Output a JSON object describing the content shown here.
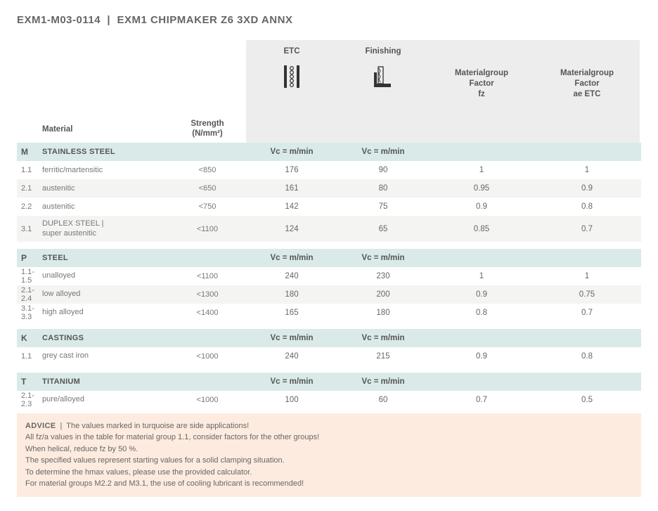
{
  "title_left": "EXM1-M03-0114",
  "title_right": "EXM1 CHIPMAKER Z6 3XD ANNX",
  "columns": {
    "material": "Material",
    "strength": "Strength\n(N/mm²)",
    "etc": "ETC",
    "finishing": "Finishing",
    "factor_fz": "Materialgroup\nFactor\nfz",
    "factor_ae": "Materialgroup\nFactor\nae ETC"
  },
  "vc_label": "Vc = m/min",
  "groups": [
    {
      "code": "M",
      "name": "STAINLESS STEEL",
      "stripe": "#f2c200",
      "rows": [
        {
          "id": "1.1",
          "mat": "ferritic/martensitic",
          "strength": "<850",
          "etc": "176",
          "fin": "90",
          "fz": "1",
          "ae": "1"
        },
        {
          "id": "2.1",
          "mat": "austenitic",
          "strength": "<650",
          "etc": "161",
          "fin": "80",
          "fz": "0.95",
          "ae": "0.9"
        },
        {
          "id": "2.2",
          "mat": "austenitic",
          "strength": "<750",
          "etc": "142",
          "fin": "75",
          "fz": "0.9",
          "ae": "0.8"
        },
        {
          "id": "3.1",
          "mat": "DUPLEX STEEL |\nsuper austenitic",
          "strength": "<1100",
          "etc": "124",
          "fin": "65",
          "fz": "0.85",
          "ae": "0.7"
        }
      ]
    },
    {
      "code": "P",
      "name": "STEEL",
      "stripe": "#2b4aa0",
      "rows": [
        {
          "id": "1.1-1.5",
          "mat": "unalloyed",
          "strength": "<1100",
          "etc": "240",
          "fin": "230",
          "fz": "1",
          "ae": "1"
        },
        {
          "id": "2.1-2.4",
          "mat": "low alloyed",
          "strength": "<1300",
          "etc": "180",
          "fin": "200",
          "fz": "0.9",
          "ae": "0.75"
        },
        {
          "id": "3.1-3.3",
          "mat": "high alloyed",
          "strength": "<1400",
          "etc": "165",
          "fin": "180",
          "fz": "0.8",
          "ae": "0.7"
        }
      ]
    },
    {
      "code": "K",
      "name": "CASTINGS",
      "stripe": "#d32e2e",
      "rows": [
        {
          "id": "1.1",
          "mat": "grey cast iron",
          "strength": "<1000",
          "etc": "240",
          "fin": "215",
          "fz": "0.9",
          "ae": "0.8"
        }
      ]
    },
    {
      "code": "T",
      "name": "TITANIUM",
      "stripe": "#f08a2a",
      "rows": [
        {
          "id": "2.1-2.3",
          "mat": "pure/alloyed",
          "strength": "<1000",
          "etc": "100",
          "fin": "60",
          "fz": "0.7",
          "ae": "0.5"
        }
      ]
    }
  ],
  "advice": {
    "label": "ADVICE",
    "lines": [
      "The values marked in turquoise are side applications!",
      "All fz/a values in the table for material group 1.1, consider factors for the other groups!",
      "When helical, reduce fz by 50 %.",
      "The specified values represent starting values for a solid clamping situation.",
      "To determine the hmax values, please use the provided calculator.",
      "For material groups M2.2 and M3.1, the use of cooling lubricant is recommended!"
    ]
  },
  "style": {
    "group_bg": "#d9eae9",
    "alt_bg": "#f4f4f2",
    "header_bg": "#ededed",
    "advice_bg": "#fdebdf"
  }
}
